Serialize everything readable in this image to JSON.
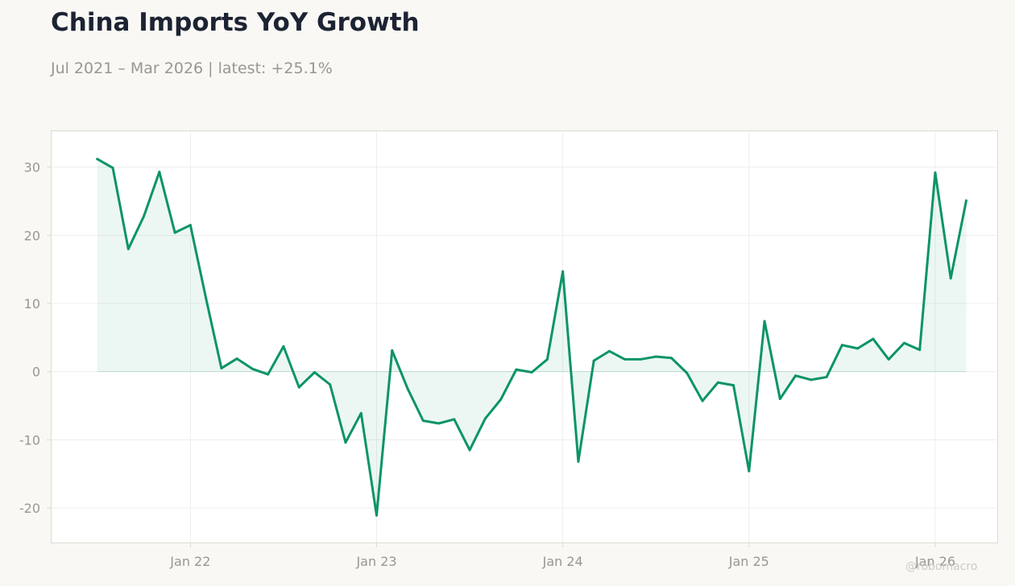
{
  "header": {
    "title": "China Imports YoY Growth",
    "subtitle": "Jul 2021 – Mar 2026 | latest: +25.1%"
  },
  "watermark": "@robomacro",
  "colors": {
    "line": "#0c9467",
    "fill": "#0c9467",
    "text": "#1c2333",
    "muted": "#9a9690",
    "grid": "#eceae5",
    "border": "#dedad2"
  },
  "chart_data": {
    "type": "area",
    "title": "China Imports YoY Growth",
    "xlabel": "",
    "ylabel": "",
    "x_ticks": [
      {
        "label": "Jan 22",
        "date": "2022-01"
      },
      {
        "label": "Jan 23",
        "date": "2023-01"
      },
      {
        "label": "Jan 24",
        "date": "2024-01"
      },
      {
        "label": "Jan 25",
        "date": "2025-01"
      },
      {
        "label": "Jan 26",
        "date": "2026-01"
      }
    ],
    "y_ticks": [
      -20,
      -10,
      0,
      10,
      20,
      30
    ],
    "xlim": [
      "2021-04",
      "2026-05"
    ],
    "ylim": [
      -25.2,
      35.4
    ],
    "grid": true,
    "x": [
      "2021-07",
      "2021-08",
      "2021-09",
      "2021-10",
      "2021-11",
      "2021-12",
      "2022-01",
      "2022-02",
      "2022-03",
      "2022-04",
      "2022-05",
      "2022-06",
      "2022-07",
      "2022-08",
      "2022-09",
      "2022-10",
      "2022-11",
      "2022-12",
      "2023-01",
      "2023-02",
      "2023-03",
      "2023-04",
      "2023-05",
      "2023-06",
      "2023-07",
      "2023-08",
      "2023-09",
      "2023-10",
      "2023-11",
      "2023-12",
      "2024-01",
      "2024-02",
      "2024-03",
      "2024-04",
      "2024-05",
      "2024-06",
      "2024-07",
      "2024-08",
      "2024-09",
      "2024-10",
      "2024-11",
      "2024-12",
      "2025-01",
      "2025-02",
      "2025-03",
      "2025-04",
      "2025-05",
      "2025-06",
      "2025-07",
      "2025-08",
      "2025-09",
      "2025-10",
      "2025-11",
      "2025-12",
      "2026-01",
      "2026-02",
      "2026-03"
    ],
    "values": [
      31.2,
      29.9,
      18.0,
      22.8,
      29.3,
      20.4,
      21.5,
      10.8,
      0.5,
      1.9,
      0.4,
      -0.4,
      3.7,
      -2.3,
      -0.1,
      -1.9,
      -10.4,
      -6.1,
      -21.1,
      3.1,
      -2.5,
      -7.2,
      -7.6,
      -7.0,
      -11.5,
      -6.9,
      -4.1,
      0.3,
      -0.1,
      1.8,
      14.7,
      -13.2,
      1.6,
      3.0,
      1.8,
      1.8,
      2.2,
      2.0,
      -0.2,
      -4.3,
      -1.6,
      -2.0,
      -14.6,
      7.4,
      -4.0,
      -0.6,
      -1.2,
      -0.8,
      3.9,
      3.4,
      4.8,
      1.8,
      4.2,
      3.2,
      29.2,
      13.7,
      25.1
    ]
  }
}
